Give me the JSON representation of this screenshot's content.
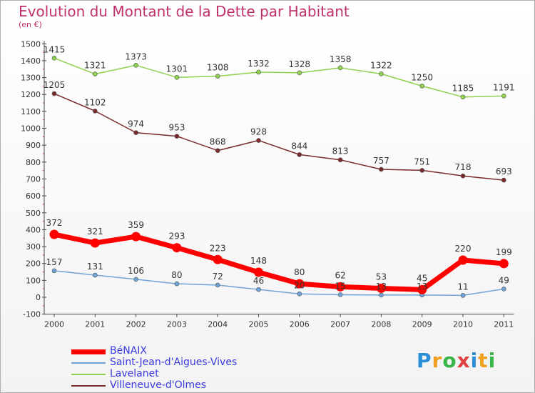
{
  "title": "Evolution du Montant de la Dette par Habitant",
  "subtitle": "(en €)",
  "logo": {
    "letters": [
      "P",
      "r",
      "o",
      "x",
      "i",
      "t",
      "i"
    ],
    "colors": [
      "#2b8fd6",
      "#f0a020",
      "#3ab54a",
      "#e04040",
      "#2b8fd6",
      "#f0a020",
      "#3ab54a"
    ]
  },
  "chart_data": {
    "type": "line",
    "title": "Evolution du Montant de la Dette par Habitant",
    "ylabel": "(en €)",
    "xlabel": "",
    "x": [
      "2000",
      "2001",
      "2002",
      "2003",
      "2004",
      "2005",
      "2006",
      "2007",
      "2008",
      "2009",
      "2010",
      "2011"
    ],
    "ylim": [
      -100,
      1500
    ],
    "yticks": [
      -100,
      0,
      100,
      200,
      300,
      400,
      500,
      600,
      700,
      800,
      900,
      1000,
      1100,
      1200,
      1300,
      1400,
      1500
    ],
    "grid": false,
    "legend_position": "bottom-left",
    "series": [
      {
        "name": "Lavelanet",
        "color": "#8fd14f",
        "values": [
          1415,
          1321,
          1373,
          1301,
          1308,
          1332,
          1328,
          1358,
          1322,
          1250,
          1185,
          1191
        ]
      },
      {
        "name": "Villeneuve-d'Olmes",
        "color": "#7a2a2a",
        "values": [
          1205,
          1102,
          974,
          953,
          868,
          928,
          844,
          813,
          757,
          751,
          718,
          693
        ]
      },
      {
        "name": "Saint-Jean-d'Aigues-Vives",
        "color": "#6fa3d8",
        "values": [
          157,
          131,
          106,
          80,
          72,
          46,
          20,
          15,
          13,
          13,
          11,
          49
        ]
      },
      {
        "name": "BéNAIX",
        "color": "#ff0000",
        "bold": true,
        "values": [
          372,
          321,
          359,
          293,
          223,
          148,
          80,
          62,
          53,
          45,
          220,
          199
        ]
      }
    ],
    "data_labels": [
      {
        "series": "Lavelanet",
        "labels": [
          "1415",
          "1321",
          "1373",
          "1301",
          "1308",
          "1332",
          "1328",
          "1358",
          "1322",
          "1250",
          "1185",
          "1191"
        ]
      },
      {
        "series": "Villeneuve-d'Olmes",
        "labels": [
          "1205",
          "1102",
          "974",
          "953",
          "868",
          "928",
          "844",
          "813",
          "757",
          "751",
          "718",
          "693"
        ]
      },
      {
        "series": "Saint-Jean-d'Aigues-Vives",
        "labels": [
          "157",
          "131",
          "106",
          "80",
          "72",
          "46",
          "20",
          "15",
          "13",
          "13",
          "11",
          "49"
        ]
      },
      {
        "series": "BéNAIX",
        "labels": [
          "372",
          "321",
          "359",
          "293",
          "223",
          "148",
          "80",
          "62",
          "53",
          "45",
          "220",
          "199"
        ]
      }
    ]
  },
  "legend": [
    {
      "name": "BéNAIX",
      "color": "#ff0000",
      "bold": true
    },
    {
      "name": "Saint-Jean-d'Aigues-Vives",
      "color": "#6fa3d8",
      "bold": false
    },
    {
      "name": "Lavelanet",
      "color": "#8fd14f",
      "bold": false
    },
    {
      "name": "Villeneuve-d'Olmes",
      "color": "#7a2a2a",
      "bold": false
    }
  ]
}
